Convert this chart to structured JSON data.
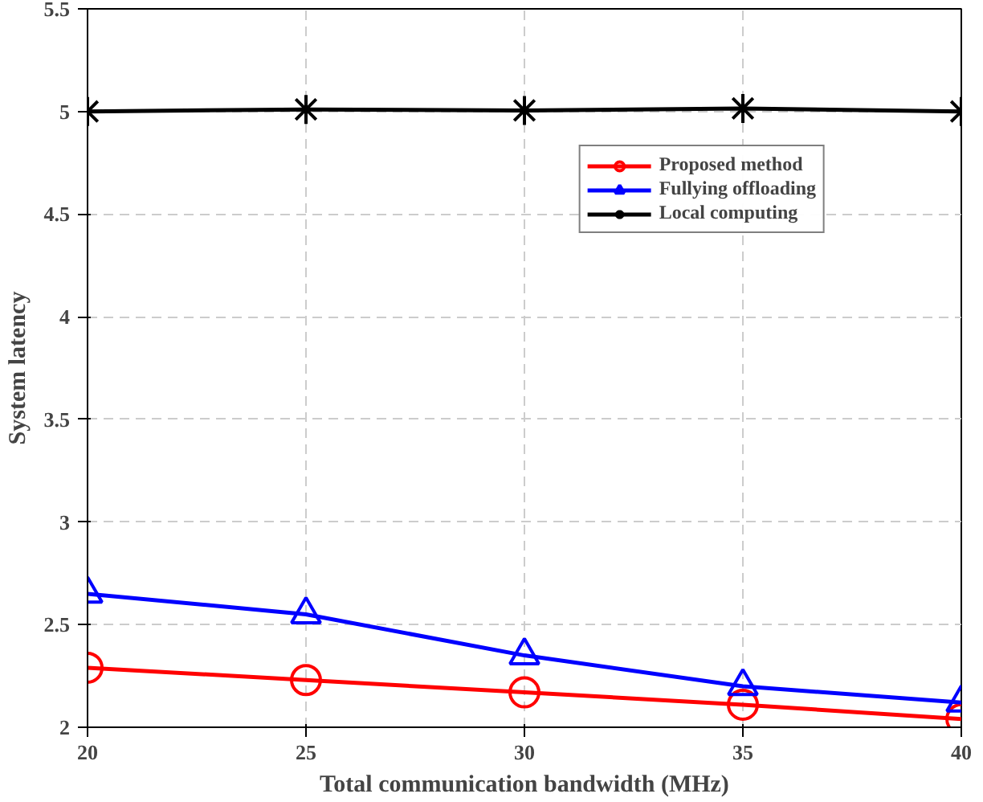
{
  "chart_data": {
    "type": "line",
    "xlabel": "Total communication bandwidth (MHz)",
    "ylabel": "System latency",
    "x": [
      20,
      25,
      30,
      35,
      40
    ],
    "series": [
      {
        "name": "Proposed method",
        "color": "#ff0000",
        "marker": "circle",
        "values": [
          2.29,
          2.23,
          2.17,
          2.11,
          2.04
        ]
      },
      {
        "name": "Fullying offloading",
        "color": "#0000ff",
        "marker": "triangle",
        "values": [
          2.65,
          2.55,
          2.35,
          2.2,
          2.12
        ]
      },
      {
        "name": "Local computing",
        "color": "#000000",
        "marker": "cross",
        "values": [
          5.0,
          5.01,
          5.005,
          5.015,
          5.0
        ]
      }
    ],
    "xlim": [
      20,
      40
    ],
    "xticks": [
      20,
      25,
      30,
      35,
      40
    ],
    "ylim": [
      2,
      5.5
    ],
    "yticks": [
      2,
      2.5,
      3,
      3.5,
      4,
      4.5,
      5,
      5.5
    ],
    "grid": true,
    "legend": "top right",
    "line_style": "solid"
  }
}
